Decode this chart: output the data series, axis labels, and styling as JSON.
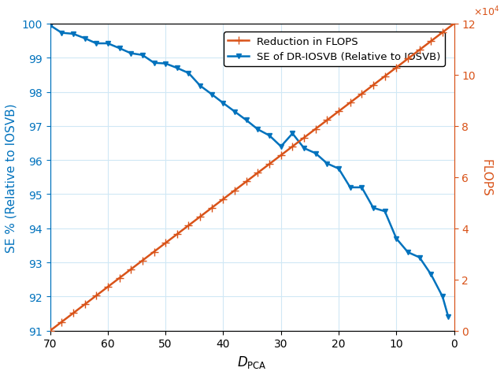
{
  "ylabel_left": "SE % (Relative to IOSVB)",
  "ylabel_right": "FLOPS",
  "xlim_left": 70,
  "xlim_right": 0,
  "ylim_left": [
    91,
    100
  ],
  "ylim_right": [
    0,
    120000
  ],
  "x_ticks": [
    70,
    60,
    50,
    40,
    30,
    20,
    10,
    0
  ],
  "y_ticks_left": [
    91,
    92,
    93,
    94,
    95,
    96,
    97,
    98,
    99,
    100
  ],
  "y_ticks_right": [
    0,
    20000,
    40000,
    60000,
    80000,
    100000,
    120000
  ],
  "y_tick_right_labels": [
    "0",
    "2",
    "4",
    "6",
    "8",
    "10",
    "12"
  ],
  "flops_color": "#d95319",
  "se_color": "#0072bd",
  "background_color": "#ffffff",
  "grid_color": "#d0e8f5",
  "legend_labels": [
    "Reduction in FLOPS",
    "SE of DR-IOSVB (Relative to IOSVB)"
  ],
  "flops_x": [
    70,
    68,
    66,
    64,
    62,
    60,
    58,
    56,
    54,
    52,
    50,
    48,
    46,
    44,
    42,
    40,
    38,
    36,
    34,
    32,
    30,
    28,
    26,
    24,
    22,
    20,
    18,
    16,
    14,
    12,
    10,
    8,
    6,
    4,
    2,
    0
  ],
  "flops_y": [
    0,
    3429,
    6857,
    10286,
    13714,
    17143,
    20571,
    24000,
    27429,
    30857,
    34286,
    37714,
    41143,
    44571,
    48000,
    51429,
    54857,
    58286,
    61714,
    65143,
    68571,
    72000,
    75429,
    78857,
    82286,
    85714,
    89143,
    92571,
    96000,
    99429,
    102857,
    106286,
    109714,
    113143,
    116571,
    120000
  ],
  "se_x": [
    70,
    68,
    66,
    64,
    62,
    60,
    58,
    56,
    54,
    52,
    50,
    48,
    46,
    44,
    42,
    40,
    38,
    36,
    34,
    32,
    30,
    28,
    26,
    24,
    22,
    20,
    18,
    16,
    14,
    12,
    10,
    8,
    6,
    4,
    2,
    1
  ],
  "se_y": [
    99.95,
    99.73,
    99.7,
    99.57,
    99.42,
    99.42,
    99.28,
    99.13,
    99.08,
    98.85,
    98.83,
    98.7,
    98.55,
    98.18,
    97.93,
    97.67,
    97.42,
    97.17,
    96.9,
    96.72,
    96.4,
    96.78,
    96.35,
    96.2,
    95.9,
    95.75,
    95.2,
    95.2,
    94.6,
    94.5,
    93.7,
    93.3,
    93.15,
    92.65,
    92.0,
    91.4
  ]
}
